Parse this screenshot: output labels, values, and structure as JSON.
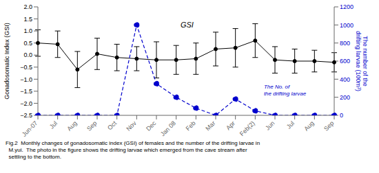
{
  "chart_data": {
    "type": "line",
    "categories": [
      "Jun-07",
      "Jul",
      "Aug",
      "Sep",
      "Oct",
      "Nov",
      "Dec",
      "Jan 08",
      "Feb",
      "Mar",
      "Apr",
      "Feb(2)",
      "Jun",
      "Jul",
      "Aug",
      "Sep"
    ],
    "series": [
      {
        "name": "GSI",
        "color": "#000000",
        "marker": "circle",
        "line_style": "solid",
        "values": [
          0.5,
          0.45,
          -0.6,
          0.05,
          -0.1,
          -0.15,
          -0.2,
          -0.2,
          -0.15,
          0.25,
          0.3,
          0.6,
          -0.2,
          -0.25,
          -0.25,
          -0.3
        ],
        "errors": [
          0.55,
          0.55,
          0.75,
          0.65,
          0.55,
          0.5,
          0.75,
          0.6,
          0.65,
          0.7,
          0.8,
          0.7,
          0.55,
          0.5,
          0.45,
          0.4
        ]
      },
      {
        "name": "The No. of\nthe drifting larvae",
        "color": "#0000cd",
        "marker": "circle",
        "line_style": "dashed",
        "axis": "y2",
        "values": [
          0,
          0,
          0,
          0,
          0,
          1000,
          350,
          200,
          80,
          0,
          180,
          50,
          0,
          0,
          0,
          0
        ]
      }
    ],
    "ylabel": "Gonadosomatic Index (GSI)",
    "y2label": "The number of the\ndrifting larvae (100m³)",
    "ylim": [
      -2.5,
      2.0
    ],
    "yticks": [
      {
        "value": -2.5,
        "label": "−2.5"
      },
      {
        "value": -2.0,
        "label": "−2.0"
      },
      {
        "value": -1.5,
        "label": "−1.5"
      },
      {
        "value": -1.0,
        "label": "−1.0"
      },
      {
        "value": -0.5,
        "label": "−0.5"
      },
      {
        "value": 0.0,
        "label": "0.0"
      },
      0.5,
      {
        "value": 1.0,
        "label": "1.0"
      },
      1.5,
      {
        "value": 2.0,
        "label": "2.0"
      }
    ],
    "y2lim": [
      0,
      1200
    ],
    "y2ticks": [
      0,
      200,
      400,
      600,
      800,
      1000,
      1200
    ],
    "grid": false,
    "caption": "Fig.2  Monthly changes of gonadosomatic index (GSI) of females and the number of the drifting larvae in\n  M.yui.  The photo in the figure shows the drifting larvae which emerged from the cave stream after\n  settling to the bottom."
  }
}
